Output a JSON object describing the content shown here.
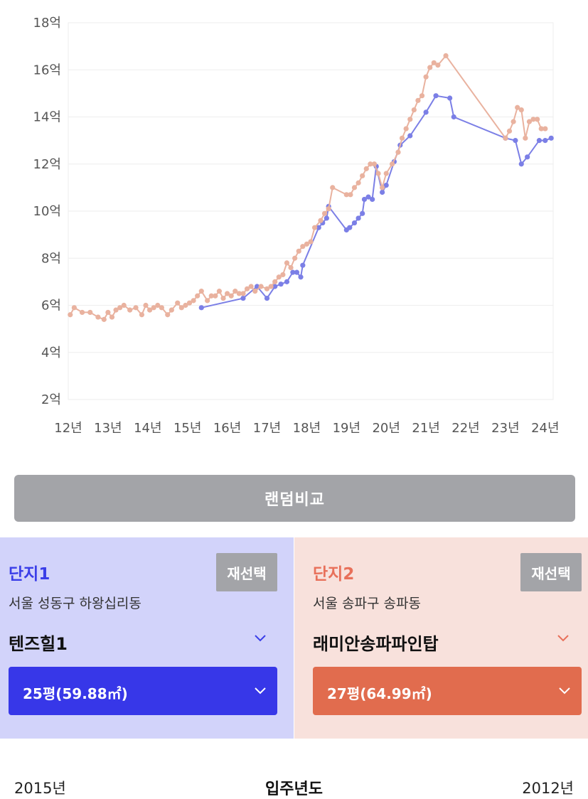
{
  "chart_data": {
    "type": "line",
    "title": "",
    "xlabel": "",
    "ylabel": "",
    "y_unit": "억",
    "xlim": [
      2012,
      2024.2
    ],
    "ylim": [
      2,
      18
    ],
    "y_ticks": [
      "2억",
      "4억",
      "6억",
      "8억",
      "10억",
      "12억",
      "14억",
      "16억",
      "18억"
    ],
    "x_ticks": [
      "12년",
      "13년",
      "14년",
      "15년",
      "16년",
      "17년",
      "18년",
      "19년",
      "20년",
      "21년",
      "22년",
      "23년",
      "24년"
    ],
    "grid": true,
    "series": [
      {
        "name": "단지1",
        "color": "#7b7fe6",
        "x": [
          2015.35,
          2016.4,
          2016.75,
          2017.0,
          2017.2,
          2017.35,
          2017.5,
          2017.65,
          2017.75,
          2017.85,
          2017.9,
          2018.3,
          2018.4,
          2018.5,
          2018.55,
          2019.0,
          2019.08,
          2019.2,
          2019.3,
          2019.4,
          2019.45,
          2019.55,
          2019.65,
          2019.75,
          2019.9,
          2020.0,
          2020.2,
          2020.35,
          2020.6,
          2021.0,
          2021.25,
          2021.6,
          2021.7,
          2023.0,
          2023.25,
          2023.4,
          2023.55,
          2023.85,
          2024.0,
          2024.15
        ],
        "y": [
          5.9,
          6.3,
          6.8,
          6.3,
          6.8,
          6.9,
          7.0,
          7.4,
          7.4,
          7.2,
          7.7,
          9.3,
          9.5,
          9.7,
          10.2,
          9.2,
          9.3,
          9.5,
          9.7,
          9.9,
          10.5,
          10.6,
          10.5,
          11.9,
          10.8,
          11.1,
          12.1,
          12.8,
          13.2,
          14.2,
          14.9,
          14.8,
          14.0,
          13.1,
          13.0,
          12.0,
          12.3,
          13.0,
          13.0,
          13.1
        ]
      },
      {
        "name": "단지2",
        "color": "#e9b29f",
        "x": [
          2012.05,
          2012.15,
          2012.35,
          2012.55,
          2012.75,
          2012.9,
          2013.0,
          2013.1,
          2013.2,
          2013.3,
          2013.4,
          2013.55,
          2013.7,
          2013.85,
          2013.95,
          2014.05,
          2014.15,
          2014.25,
          2014.35,
          2014.5,
          2014.6,
          2014.75,
          2014.85,
          2014.95,
          2015.05,
          2015.15,
          2015.25,
          2015.35,
          2015.5,
          2015.6,
          2015.7,
          2015.8,
          2015.9,
          2016.0,
          2016.1,
          2016.2,
          2016.3,
          2016.4,
          2016.5,
          2016.6,
          2016.7,
          2016.85,
          2017.0,
          2017.1,
          2017.2,
          2017.3,
          2017.4,
          2017.5,
          2017.6,
          2017.7,
          2017.8,
          2017.9,
          2018.0,
          2018.1,
          2018.2,
          2018.35,
          2018.45,
          2018.55,
          2018.65,
          2019.0,
          2019.1,
          2019.2,
          2019.3,
          2019.4,
          2019.5,
          2019.6,
          2019.7,
          2019.8,
          2019.9,
          2020.0,
          2020.15,
          2020.3,
          2020.4,
          2020.5,
          2020.6,
          2020.7,
          2020.8,
          2020.9,
          2021.0,
          2021.1,
          2021.2,
          2021.3,
          2021.5,
          2023.0,
          2023.1,
          2023.2,
          2023.3,
          2023.4,
          2023.5,
          2023.6,
          2023.7,
          2023.8,
          2023.9,
          2024.0
        ],
        "y": [
          5.6,
          5.9,
          5.7,
          5.7,
          5.5,
          5.4,
          5.7,
          5.5,
          5.8,
          5.9,
          6.0,
          5.8,
          5.9,
          5.6,
          6.0,
          5.8,
          5.9,
          6.0,
          5.9,
          5.6,
          5.8,
          6.1,
          5.9,
          6.0,
          6.1,
          6.2,
          6.4,
          6.6,
          6.2,
          6.4,
          6.4,
          6.6,
          6.3,
          6.5,
          6.4,
          6.6,
          6.5,
          6.5,
          6.7,
          6.8,
          6.6,
          6.8,
          6.7,
          6.8,
          7.0,
          7.2,
          7.3,
          7.8,
          7.6,
          8.0,
          8.3,
          8.5,
          8.6,
          8.7,
          9.3,
          9.6,
          9.9,
          10.1,
          11.0,
          10.7,
          10.7,
          11.0,
          11.2,
          11.5,
          11.8,
          12.0,
          12.0,
          11.6,
          11.0,
          11.6,
          12.0,
          12.5,
          13.1,
          13.5,
          13.9,
          14.3,
          14.7,
          14.9,
          15.7,
          16.1,
          16.3,
          16.2,
          16.6,
          13.1,
          13.4,
          13.8,
          14.4,
          14.3,
          13.1,
          13.8,
          13.9,
          13.9,
          13.5,
          13.5
        ]
      }
    ]
  },
  "random_compare_label": "랜덤비교",
  "panels": {
    "left": {
      "title": "단지1",
      "reselect_label": "재선택",
      "address": "서울 성동구 하왕십리동",
      "complex_name": "텐즈힐1",
      "size_label": "25평(59.88㎡)",
      "accent_color": "#3737e8"
    },
    "right": {
      "title": "단지2",
      "reselect_label": "재선택",
      "address": "서울 송파구 송파동",
      "complex_name": "래미안송파파인탑",
      "size_label": "27평(64.99㎡)",
      "accent_color": "#e16c4e"
    }
  },
  "move_in": {
    "title": "입주년도",
    "left_year": "2015년",
    "right_year": "2012년"
  }
}
